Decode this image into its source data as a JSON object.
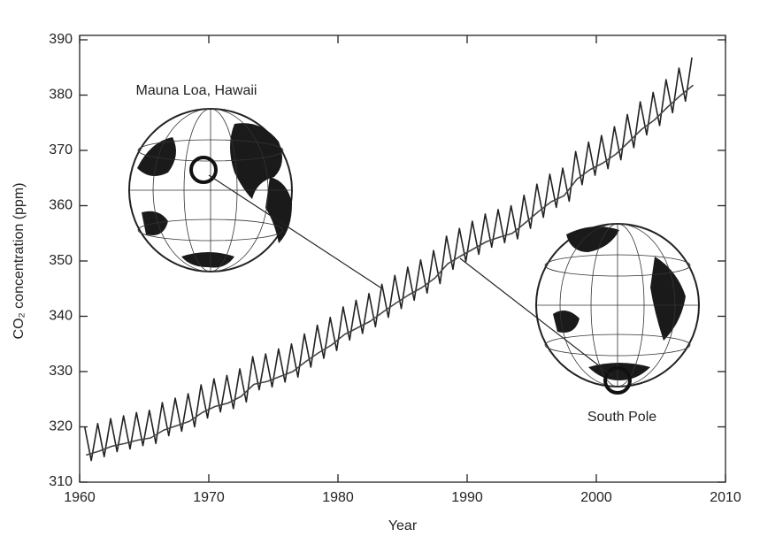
{
  "chart_data": {
    "type": "line",
    "xlabel": "Year",
    "ylabel": "CO₂ concentration (ppm)",
    "xlim": [
      1960,
      2010
    ],
    "xticks": [
      1960,
      1970,
      1980,
      1990,
      2000,
      2010
    ],
    "ylim": [
      310,
      390
    ],
    "yticks": [
      310,
      320,
      330,
      340,
      350,
      360,
      370,
      380,
      390
    ],
    "series": [
      {
        "name": "Mauna Loa, Hawaii",
        "color": "#222222",
        "x": [
          1960.4,
          1960.9,
          1961.4,
          1961.9,
          1962.4,
          1962.9,
          1963.4,
          1963.9,
          1964.4,
          1964.9,
          1965.4,
          1965.9,
          1966.4,
          1966.9,
          1967.4,
          1967.9,
          1968.4,
          1968.9,
          1969.4,
          1969.9,
          1970.4,
          1970.9,
          1971.4,
          1971.9,
          1972.4,
          1972.9,
          1973.4,
          1973.9,
          1974.4,
          1974.9,
          1975.4,
          1975.9,
          1976.4,
          1976.9,
          1977.4,
          1977.9,
          1978.4,
          1978.9,
          1979.4,
          1979.9,
          1980.4,
          1980.9,
          1981.4,
          1981.9,
          1982.4,
          1982.9,
          1983.4,
          1983.9,
          1984.4,
          1984.9,
          1985.4,
          1985.9,
          1986.4,
          1986.9,
          1987.4,
          1987.9,
          1988.4,
          1988.9,
          1989.4,
          1989.9,
          1990.4,
          1990.9,
          1991.4,
          1991.9,
          1992.4,
          1992.9,
          1993.4,
          1993.9,
          1994.4,
          1994.9,
          1995.4,
          1995.9,
          1996.4,
          1996.9,
          1997.4,
          1997.9,
          1998.4,
          1998.9,
          1999.4,
          1999.9,
          2000.4,
          2000.9,
          2001.4,
          2001.9,
          2002.4,
          2002.9,
          2003.4,
          2003.9,
          2004.4,
          2004.9,
          2005.4,
          2005.9,
          2006.4,
          2006.9,
          2007.4
        ],
        "values": [
          319.9,
          313.9,
          320.6,
          314.6,
          321.5,
          315.5,
          322.0,
          316.0,
          322.6,
          316.6,
          323.0,
          317.0,
          324.4,
          318.4,
          325.2,
          319.2,
          326.0,
          320.0,
          327.6,
          321.6,
          328.7,
          322.7,
          329.3,
          323.3,
          330.5,
          324.5,
          332.7,
          326.7,
          333.2,
          327.2,
          334.1,
          328.1,
          335.0,
          329.0,
          336.8,
          330.8,
          338.4,
          332.4,
          339.8,
          333.8,
          341.7,
          335.7,
          342.9,
          336.9,
          344.1,
          338.1,
          345.8,
          339.8,
          347.4,
          341.4,
          348.9,
          342.9,
          350.2,
          344.2,
          351.9,
          345.9,
          354.5,
          348.5,
          355.9,
          349.9,
          357.2,
          351.2,
          358.5,
          352.5,
          359.3,
          353.3,
          360.0,
          354.0,
          361.9,
          355.9,
          363.9,
          357.9,
          365.7,
          359.7,
          366.8,
          360.8,
          369.8,
          363.8,
          371.5,
          365.5,
          372.7,
          366.7,
          374.3,
          368.3,
          376.5,
          370.5,
          378.8,
          372.8,
          380.5,
          374.5,
          382.8,
          376.8,
          384.9,
          378.9,
          386.8
        ]
      },
      {
        "name": "South Pole",
        "color": "#444444",
        "x": [
          1960.5,
          1961.5,
          1962.5,
          1963.5,
          1964.5,
          1965.5,
          1966.5,
          1967.5,
          1968.5,
          1969.5,
          1970.5,
          1971.5,
          1972.5,
          1973.5,
          1974.5,
          1975.5,
          1976.5,
          1977.5,
          1978.5,
          1979.5,
          1980.5,
          1981.5,
          1982.5,
          1983.5,
          1984.5,
          1985.5,
          1986.5,
          1987.5,
          1988.5,
          1989.5,
          1990.5,
          1991.5,
          1992.5,
          1993.5,
          1994.5,
          1995.5,
          1996.5,
          1997.5,
          1998.5,
          1999.5,
          2000.5,
          2001.5,
          2002.5,
          2003.5,
          2004.5,
          2005.5,
          2006.5,
          2007.5
        ],
        "values": [
          314.9,
          315.6,
          316.5,
          317.0,
          317.6,
          318.0,
          319.4,
          320.2,
          321.0,
          322.6,
          323.7,
          324.3,
          325.5,
          327.7,
          328.2,
          329.1,
          330.0,
          331.8,
          333.4,
          334.8,
          336.7,
          337.9,
          339.1,
          340.8,
          342.4,
          343.9,
          345.2,
          346.9,
          349.5,
          350.9,
          352.2,
          353.5,
          354.3,
          355.0,
          356.9,
          358.9,
          360.7,
          361.8,
          364.8,
          366.5,
          367.7,
          369.3,
          371.5,
          373.8,
          375.5,
          377.8,
          379.9,
          381.8
        ]
      }
    ]
  }
}
